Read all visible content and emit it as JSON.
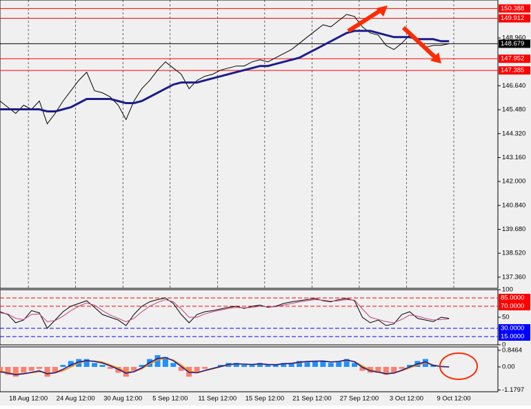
{
  "chart_data": [
    {
      "type": "line",
      "x": [
        0,
        1,
        2,
        3,
        4,
        5,
        6,
        7,
        8,
        9,
        10,
        11,
        12,
        13,
        14,
        15,
        16,
        17,
        18,
        19,
        20,
        21,
        22,
        23,
        24,
        25,
        26,
        27,
        28,
        29,
        30,
        31,
        32,
        33,
        34,
        35,
        36,
        37,
        38,
        39,
        40,
        41,
        42,
        43,
        44,
        45,
        46,
        47,
        48,
        49,
        50,
        51,
        52,
        53,
        54,
        55,
        56,
        57
      ],
      "xlim": [
        0,
        63.2
      ],
      "xticks": [
        {
          "value": 3.6,
          "label": "18 Aug 12:00"
        },
        {
          "value": 9.6,
          "label": "24 Aug 12:00"
        },
        {
          "value": 15.6,
          "label": "30 Aug 12:00"
        },
        {
          "value": 21.6,
          "label": "5 Sep 12:00"
        },
        {
          "value": 27.6,
          "label": "11 Sep 12:00"
        },
        {
          "value": 33.6,
          "label": "15 Sep 12:00"
        },
        {
          "value": 39.6,
          "label": "21 Sep 12:00"
        },
        {
          "value": 45.6,
          "label": "27 Sep 12:00"
        },
        {
          "value": 51.6,
          "label": "3 Oct 12:00"
        },
        {
          "value": 57.6,
          "label": "9 Oct 12:00"
        }
      ],
      "ylim": [
        136.82,
        150.8
      ],
      "yticks": [
        {
          "value": 137.36,
          "label": "137.360"
        },
        {
          "value": 138.52,
          "label": "138.520"
        },
        {
          "value": 139.68,
          "label": "139.680"
        },
        {
          "value": 140.84,
          "label": "140.840"
        },
        {
          "value": 142,
          "label": "142.000"
        },
        {
          "value": 143.16,
          "label": "143.160"
        },
        {
          "value": 144.32,
          "label": "144.320"
        },
        {
          "value": 145.48,
          "label": "145.480"
        },
        {
          "value": 146.64,
          "label": "146.640"
        },
        {
          "value": 148.96,
          "label": "148.960"
        }
      ],
      "series": [
        {
          "color": "#000000",
          "values": [
            145.9,
            145.6,
            145.3,
            145.7,
            145.5,
            145.9,
            144.8,
            145.3,
            145.9,
            146.4,
            146.9,
            147.3,
            146.4,
            146.3,
            146.1,
            145.7,
            145.0,
            145.9,
            146.5,
            146.9,
            147.4,
            147.8,
            147.5,
            147.2,
            146.5,
            146.9,
            147.1,
            147.2,
            147.4,
            147.5,
            147.6,
            147.6,
            147.8,
            147.9,
            147.8,
            148.0,
            148.2,
            148.4,
            148.7,
            149.0,
            149.3,
            149.6,
            149.5,
            149.8,
            150.1,
            150.0,
            149.5,
            149.2,
            149.1,
            148.6,
            148.4,
            148.7,
            149.1,
            148.9,
            148.5,
            148.6,
            148.6,
            148.68
          ]
        },
        {
          "color": "#1c1c8c",
          "values": [
            145.5,
            145.5,
            145.5,
            145.5,
            145.5,
            145.5,
            145.4,
            145.4,
            145.5,
            145.6,
            145.8,
            146.0,
            146.0,
            146.0,
            146.0,
            145.9,
            145.8,
            145.8,
            145.9,
            146.1,
            146.3,
            146.5,
            146.7,
            146.8,
            146.8,
            146.8,
            146.9,
            147.0,
            147.1,
            147.2,
            147.3,
            147.4,
            147.5,
            147.6,
            147.6,
            147.7,
            147.8,
            147.9,
            148.0,
            148.2,
            148.4,
            148.6,
            148.8,
            149.0,
            149.2,
            149.3,
            149.3,
            149.3,
            149.2,
            149.1,
            149.0,
            149.0,
            149.0,
            148.9,
            148.9,
            148.9,
            148.8,
            148.8
          ]
        }
      ],
      "levels": [
        {
          "value": 150.388,
          "color": "#ff0000"
        },
        {
          "value": 149.912,
          "color": "#ff0000"
        },
        {
          "value": 147.952,
          "color": "#ff0000"
        },
        {
          "value": 147.385,
          "color": "#ff0000"
        },
        {
          "value": 148.679,
          "color": "#000000"
        }
      ],
      "grid": true
    },
    {
      "type": "line",
      "x": [
        0,
        1,
        2,
        3,
        4,
        5,
        6,
        7,
        8,
        9,
        10,
        11,
        12,
        13,
        14,
        15,
        16,
        17,
        18,
        19,
        20,
        21,
        22,
        23,
        24,
        25,
        26,
        27,
        28,
        29,
        30,
        31,
        32,
        33,
        34,
        35,
        36,
        37,
        38,
        39,
        40,
        41,
        42,
        43,
        44,
        45,
        46,
        47,
        48,
        49,
        50,
        51,
        52,
        53,
        54,
        55,
        56,
        57
      ],
      "xlim": [
        0,
        63.2
      ],
      "ylim": [
        0,
        100
      ],
      "yticks": [
        100,
        50,
        0
      ],
      "levels": [
        {
          "value": 85,
          "label": "85.0000",
          "color": "#ff0000"
        },
        {
          "value": 70,
          "label": "70.0000",
          "color": "#ff0000"
        },
        {
          "value": 30,
          "label": "30.0000",
          "color": "#0000ff"
        },
        {
          "value": 15,
          "label": "15.0000",
          "color": "#0000ff"
        }
      ],
      "series": [
        {
          "color": "#000000",
          "values": [
            60,
            55,
            40,
            45,
            62,
            58,
            30,
            45,
            60,
            70,
            75,
            80,
            68,
            55,
            50,
            45,
            35,
            55,
            70,
            78,
            82,
            85,
            75,
            55,
            40,
            55,
            60,
            62,
            65,
            68,
            70,
            66,
            70,
            72,
            68,
            70,
            75,
            78,
            80,
            82,
            84,
            80,
            78,
            82,
            84,
            80,
            50,
            40,
            45,
            35,
            38,
            55,
            60,
            48,
            45,
            42,
            50,
            48
          ]
        },
        {
          "color": "#c04080",
          "values": [
            58,
            56,
            48,
            46,
            55,
            56,
            42,
            44,
            52,
            62,
            70,
            76,
            72,
            62,
            54,
            48,
            42,
            48,
            60,
            70,
            77,
            82,
            78,
            65,
            50,
            50,
            56,
            60,
            63,
            66,
            68,
            67,
            68,
            70,
            69,
            69,
            72,
            75,
            78,
            80,
            82,
            81,
            79,
            80,
            82,
            81,
            65,
            50,
            46,
            42,
            40,
            46,
            54,
            52,
            48,
            45,
            46,
            47
          ]
        }
      ]
    },
    {
      "type": "bar",
      "x": [
        0,
        1,
        2,
        3,
        4,
        5,
        6,
        7,
        8,
        9,
        10,
        11,
        12,
        13,
        14,
        15,
        16,
        17,
        18,
        19,
        20,
        21,
        22,
        23,
        24,
        25,
        26,
        27,
        28,
        29,
        30,
        31,
        32,
        33,
        34,
        35,
        36,
        37,
        38,
        39,
        40,
        41,
        42,
        43,
        44,
        45,
        46,
        47,
        48,
        49,
        50,
        51,
        52,
        53,
        54,
        55,
        56,
        57
      ],
      "xlim": [
        0,
        63.2
      ],
      "ylim": [
        -1.27,
        1.02
      ],
      "yticks": [
        0.8464,
        {
          "value": 0,
          "label": "0.00"
        },
        -1.1797
      ],
      "color": "#1e90ff",
      "negative_color": "#fa8072",
      "values": [
        -0.3,
        -0.4,
        -0.5,
        -0.3,
        -0.2,
        -0.1,
        -0.5,
        -0.3,
        0.1,
        0.3,
        0.4,
        0.4,
        0.2,
        0.1,
        -0.1,
        -0.3,
        -0.5,
        -0.2,
        0.1,
        0.4,
        0.6,
        0.5,
        0.2,
        -0.2,
        -0.5,
        -0.3,
        -0.1,
        0.0,
        0.1,
        0.2,
        0.2,
        0.1,
        0.1,
        0.2,
        0.1,
        0.1,
        0.2,
        0.2,
        0.3,
        0.3,
        0.3,
        0.3,
        0.2,
        0.3,
        0.4,
        0.2,
        -0.2,
        -0.3,
        -0.3,
        -0.4,
        -0.3,
        -0.1,
        0.1,
        0.3,
        0.4,
        0.1,
        0.0,
        0.0
      ],
      "series": [
        {
          "color": "#ff8c00",
          "values": [
            -0.2,
            -0.3,
            -0.35,
            -0.35,
            -0.3,
            -0.25,
            -0.3,
            -0.3,
            -0.2,
            0.0,
            0.2,
            0.3,
            0.3,
            0.25,
            0.1,
            -0.05,
            -0.25,
            -0.25,
            -0.1,
            0.15,
            0.35,
            0.45,
            0.35,
            0.1,
            -0.2,
            -0.3,
            -0.2,
            -0.1,
            0.0,
            0.1,
            0.15,
            0.15,
            0.12,
            0.15,
            0.13,
            0.12,
            0.15,
            0.17,
            0.22,
            0.26,
            0.28,
            0.3,
            0.26,
            0.27,
            0.33,
            0.28,
            0.05,
            -0.15,
            -0.25,
            -0.32,
            -0.32,
            -0.2,
            -0.05,
            0.1,
            0.2,
            0.1,
            0.02,
            0.0
          ]
        },
        {
          "color": "#1c1c8c",
          "values": [
            -0.25,
            -0.32,
            -0.4,
            -0.35,
            -0.28,
            -0.2,
            -0.35,
            -0.3,
            -0.12,
            0.1,
            0.25,
            0.32,
            0.28,
            0.2,
            0.05,
            -0.12,
            -0.32,
            -0.25,
            -0.05,
            0.22,
            0.42,
            0.48,
            0.32,
            0.02,
            -0.28,
            -0.3,
            -0.18,
            -0.08,
            0.02,
            0.12,
            0.16,
            0.14,
            0.12,
            0.16,
            0.12,
            0.11,
            0.16,
            0.18,
            0.24,
            0.28,
            0.29,
            0.3,
            0.25,
            0.28,
            0.35,
            0.26,
            -0.02,
            -0.2,
            -0.27,
            -0.35,
            -0.32,
            -0.17,
            0.0,
            0.15,
            0.25,
            0.08,
            0.02,
            0.0
          ]
        }
      ]
    }
  ]
}
